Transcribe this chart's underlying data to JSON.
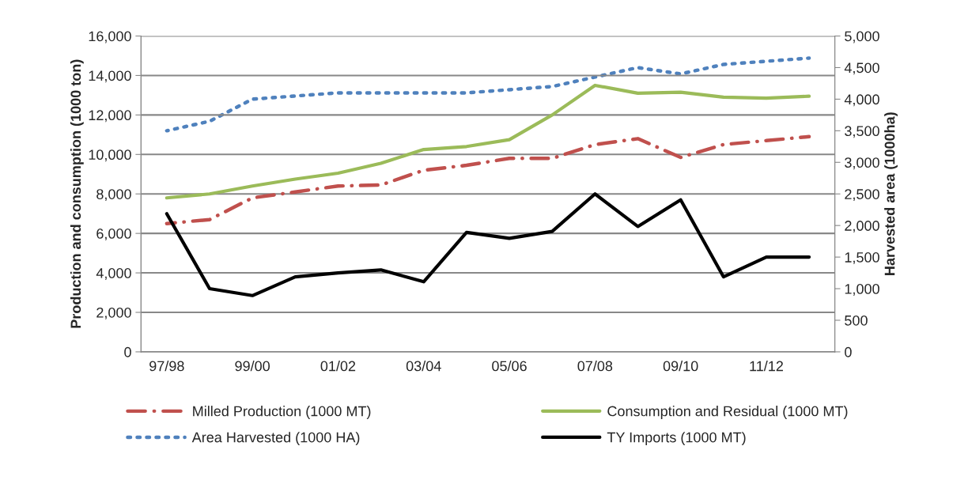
{
  "chart_data": {
    "type": "line",
    "categories": [
      "97/98",
      null,
      "99/00",
      null,
      "01/02",
      null,
      "03/04",
      null,
      "05/06",
      null,
      "07/08",
      null,
      "09/10",
      null,
      "11/12",
      null
    ],
    "ylabel": "Production and consumption (1000 ton)",
    "y2label": "Harvested area (1000ha)",
    "ylim": [
      0,
      16000
    ],
    "yticks": [
      {
        "value": 0,
        "label": "0"
      },
      {
        "value": 2000,
        "label": "2,000"
      },
      {
        "value": 4000,
        "label": "4,000"
      },
      {
        "value": 6000,
        "label": "6,000"
      },
      {
        "value": 8000,
        "label": "8,000"
      },
      {
        "value": 10000,
        "label": "10,000"
      },
      {
        "value": 12000,
        "label": "12,000"
      },
      {
        "value": 14000,
        "label": "14,000"
      },
      {
        "value": 16000,
        "label": "16,000"
      }
    ],
    "y2lim": [
      0,
      5000
    ],
    "y2ticks": [
      {
        "value": 0,
        "label": "0"
      },
      {
        "value": 500,
        "label": "500"
      },
      {
        "value": 1000,
        "label": "1,000"
      },
      {
        "value": 1500,
        "label": "1,500"
      },
      {
        "value": 2000,
        "label": "2,000"
      },
      {
        "value": 2500,
        "label": "2,500"
      },
      {
        "value": 3000,
        "label": "3,000"
      },
      {
        "value": 3500,
        "label": "3,500"
      },
      {
        "value": 4000,
        "label": "4,000"
      },
      {
        "value": 4500,
        "label": "4,500"
      },
      {
        "value": 5000,
        "label": "5,000"
      }
    ],
    "grid": "y",
    "legend": "bottom",
    "series": [
      {
        "name": "Milled Production (1000 MT)",
        "color": "#c0504d",
        "line_style": "dashdot",
        "values": [
          6500,
          6700,
          7800,
          8100,
          8400,
          8450,
          9200,
          9450,
          9800,
          9800,
          10500,
          10800,
          9850,
          10500,
          10700,
          10900
        ]
      },
      {
        "name": "Consumption and Residual (1000 MT)",
        "color": "#9bbb59",
        "line_style": "solid",
        "values": [
          7800,
          8000,
          8400,
          8750,
          9050,
          9550,
          10250,
          10400,
          10750,
          12000,
          13500,
          13100,
          13150,
          12900,
          12850,
          12950
        ]
      },
      {
        "name": "Area Harvested (1000 HA)",
        "color": "#4f81bd",
        "line_style": "dotted",
        "axis": "y2",
        "values": [
          3500,
          3650,
          4000,
          4050,
          4100,
          4100,
          4100,
          4100,
          4150,
          4200,
          4350,
          4500,
          4400,
          4550,
          4600,
          4650
        ]
      },
      {
        "name": "TY Imports (1000 MT)",
        "color": "#000000",
        "line_style": "solid",
        "values": [
          7000,
          3200,
          2850,
          3800,
          4000,
          4150,
          3550,
          6050,
          5750,
          6100,
          8000,
          6350,
          7700,
          3800,
          4800,
          4800
        ]
      }
    ]
  }
}
